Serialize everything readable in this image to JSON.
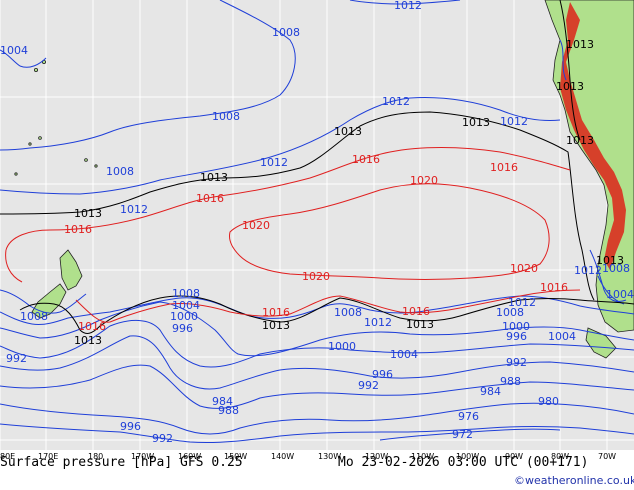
{
  "colors": {
    "ocean": "#e6e6e6",
    "land": "#b0e08c",
    "grid": "#ffffff",
    "isobar_low": "#1f3fd8",
    "isobar_1013": "#000000",
    "isobar_high": "#e02020",
    "coast": "#222222"
  },
  "map": {
    "product": "Surface pressure [hPa] GFS 0.25",
    "valid_time": "Mo 23-02-2026 03:00 UTC (00+171)",
    "credit": "©weatheronline.co.uk",
    "longitude_labels": [
      "80E",
      "170E",
      "180",
      "170W",
      "160W",
      "150W",
      "140W",
      "130W",
      "120W",
      "110W",
      "100W",
      "90W",
      "80W",
      "70W"
    ],
    "isobar_labels_blue": [
      "1012",
      "1008",
      "1004",
      "1012",
      "1012",
      "1008",
      "1008",
      "1012",
      "1012",
      "1008",
      "1004",
      "1000",
      "996",
      "992",
      "988",
      "984",
      "980",
      "976",
      "972",
      "996",
      "992",
      "988",
      "984",
      "1008",
      "1012",
      "1004",
      "1000",
      "996",
      "992",
      "1008",
      "1012",
      "1008",
      "1004",
      "1000",
      "996",
      "992",
      "1012",
      "1008",
      "1004"
    ],
    "isobar_labels_1013": [
      "1013",
      "1013",
      "1013",
      "1013",
      "1013",
      "1013",
      "1013",
      "1013",
      "1013",
      "1013",
      "1013"
    ],
    "isobar_labels_red": [
      "1016",
      "1016",
      "1016",
      "1016",
      "1016",
      "1016",
      "1020",
      "1020",
      "1020",
      "1020",
      "1016",
      "1016"
    ]
  }
}
